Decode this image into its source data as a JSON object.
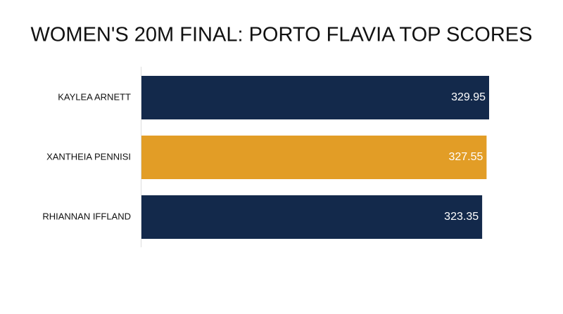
{
  "chart_data": {
    "type": "bar",
    "orientation": "horizontal",
    "title": "WOMEN'S 20M FINAL: PORTO FLAVIA TOP SCORES",
    "categories": [
      "KAYLEA ARNETT",
      "XANTHEIA PENNISI",
      "RHIANNAN IFFLAND"
    ],
    "values": [
      329.95,
      327.55,
      323.35
    ],
    "colors": [
      "#13294b",
      "#e29d26",
      "#13294b"
    ]
  }
}
